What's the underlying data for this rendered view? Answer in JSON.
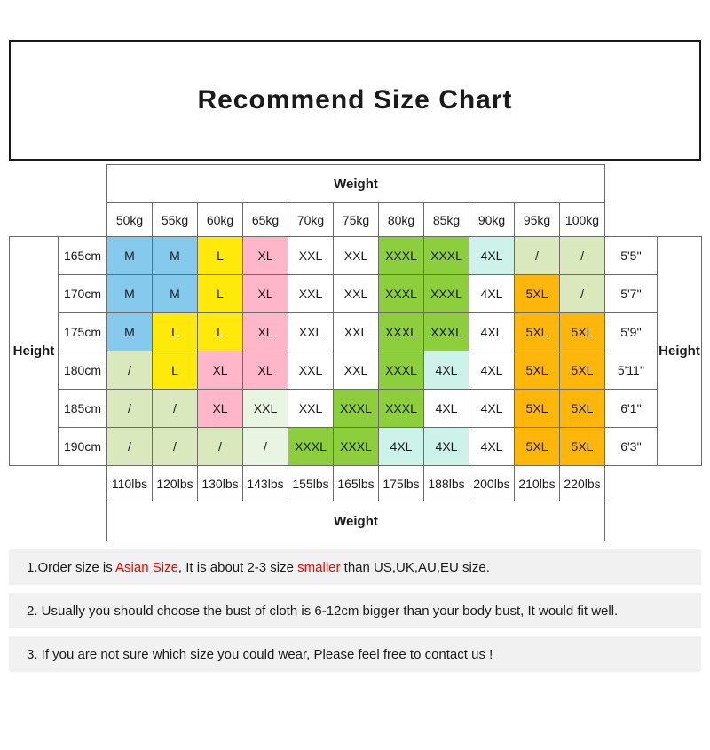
{
  "title": "Recommend Size Chart",
  "table": {
    "weight_label_top": "Weight",
    "weight_label_bottom": "Weight",
    "height_label_left": "Height",
    "height_label_right": "Height",
    "kg_headers": [
      "50kg",
      "55kg",
      "60kg",
      "65kg",
      "70kg",
      "75kg",
      "80kg",
      "85kg",
      "90kg",
      "95kg",
      "100kg"
    ],
    "lbs_headers": [
      "110lbs",
      "120lbs",
      "130lbs",
      "143lbs",
      "155lbs",
      "165lbs",
      "175lbs",
      "188lbs",
      "200lbs",
      "210lbs",
      "220lbs"
    ],
    "rows": [
      {
        "height_cm": "165cm",
        "height_ft": "5'5''",
        "cells": [
          {
            "label": "M",
            "color": "blue"
          },
          {
            "label": "M",
            "color": "blue"
          },
          {
            "label": "L",
            "color": "yellow"
          },
          {
            "label": "XL",
            "color": "pink"
          },
          {
            "label": "XXL",
            "color": "white"
          },
          {
            "label": "XXL",
            "color": "white"
          },
          {
            "label": "XXXL",
            "color": "green"
          },
          {
            "label": "XXXL",
            "color": "green"
          },
          {
            "label": "4XL",
            "color": "paleCyan"
          },
          {
            "label": "/",
            "color": "paleGreen"
          },
          {
            "label": "/",
            "color": "paleGreen"
          }
        ]
      },
      {
        "height_cm": "170cm",
        "height_ft": "5'7''",
        "cells": [
          {
            "label": "M",
            "color": "blue"
          },
          {
            "label": "M",
            "color": "blue"
          },
          {
            "label": "L",
            "color": "yellow"
          },
          {
            "label": "XL",
            "color": "pink"
          },
          {
            "label": "XXL",
            "color": "white"
          },
          {
            "label": "XXL",
            "color": "white"
          },
          {
            "label": "XXXL",
            "color": "green"
          },
          {
            "label": "XXXL",
            "color": "green"
          },
          {
            "label": "4XL",
            "color": "white"
          },
          {
            "label": "5XL",
            "color": "orange"
          },
          {
            "label": "/",
            "color": "paleGreen"
          }
        ]
      },
      {
        "height_cm": "175cm",
        "height_ft": "5'9''",
        "cells": [
          {
            "label": "M",
            "color": "blue"
          },
          {
            "label": "L",
            "color": "yellow"
          },
          {
            "label": "L",
            "color": "yellow"
          },
          {
            "label": "XL",
            "color": "pink"
          },
          {
            "label": "XXL",
            "color": "white"
          },
          {
            "label": "XXL",
            "color": "white"
          },
          {
            "label": "XXXL",
            "color": "green"
          },
          {
            "label": "XXXL",
            "color": "green"
          },
          {
            "label": "4XL",
            "color": "white"
          },
          {
            "label": "5XL",
            "color": "orange"
          },
          {
            "label": "5XL",
            "color": "orange"
          }
        ]
      },
      {
        "height_cm": "180cm",
        "height_ft": "5'11''",
        "cells": [
          {
            "label": "/",
            "color": "paleGreen"
          },
          {
            "label": "L",
            "color": "yellow"
          },
          {
            "label": "XL",
            "color": "pink"
          },
          {
            "label": "XL",
            "color": "pink"
          },
          {
            "label": "XXL",
            "color": "white"
          },
          {
            "label": "XXL",
            "color": "white"
          },
          {
            "label": "XXXL",
            "color": "green"
          },
          {
            "label": "4XL",
            "color": "paleCyan"
          },
          {
            "label": "4XL",
            "color": "white"
          },
          {
            "label": "5XL",
            "color": "orange"
          },
          {
            "label": "5XL",
            "color": "orange"
          }
        ]
      },
      {
        "height_cm": "185cm",
        "height_ft": "6'1''",
        "cells": [
          {
            "label": "/",
            "color": "paleGreen"
          },
          {
            "label": "/",
            "color": "paleGreen"
          },
          {
            "label": "XL",
            "color": "pink"
          },
          {
            "label": "XXL",
            "color": "paleMint"
          },
          {
            "label": "XXL",
            "color": "white"
          },
          {
            "label": "XXXL",
            "color": "green"
          },
          {
            "label": "XXXL",
            "color": "green"
          },
          {
            "label": "4XL",
            "color": "white"
          },
          {
            "label": "4XL",
            "color": "white"
          },
          {
            "label": "5XL",
            "color": "orange"
          },
          {
            "label": "5XL",
            "color": "orange"
          }
        ]
      },
      {
        "height_cm": "190cm",
        "height_ft": "6'3''",
        "cells": [
          {
            "label": "/",
            "color": "paleGreen"
          },
          {
            "label": "/",
            "color": "paleGreen"
          },
          {
            "label": "/",
            "color": "paleGreen"
          },
          {
            "label": "/",
            "color": "paleMint"
          },
          {
            "label": "XXXL",
            "color": "green"
          },
          {
            "label": "XXXL",
            "color": "green"
          },
          {
            "label": "4XL",
            "color": "paleCyan"
          },
          {
            "label": "4XL",
            "color": "paleCyan"
          },
          {
            "label": "4XL",
            "color": "white"
          },
          {
            "label": "5XL",
            "color": "orange"
          },
          {
            "label": "5XL",
            "color": "orange"
          }
        ]
      }
    ]
  },
  "palette": {
    "blue": "#85C9EC",
    "yellow": "#FFE90A",
    "pink": "#FFB6C8",
    "green": "#8CCE3B",
    "orange": "#FFB60A",
    "paleGreen": "#D9E9BD",
    "paleCyan": "#CDF2E9",
    "paleMint": "#E8F5E2",
    "white": "#FFFFFF"
  },
  "accent_red": "#FE0000",
  "note_bg": "#F1F1F1",
  "notes": {
    "note1": {
      "p1": "1.Order size is ",
      "red1": "Asian Size",
      "p2": ", It is about 2-3 size ",
      "red2": "smaller",
      "p3": " than US,UK,AU,EU size."
    },
    "note2": "2. Usually you should choose the bust of cloth is 6-12cm bigger than your body bust, It would fit well.",
    "note3": "3. If you are not sure which size you could wear, Please feel free to contact us !"
  }
}
